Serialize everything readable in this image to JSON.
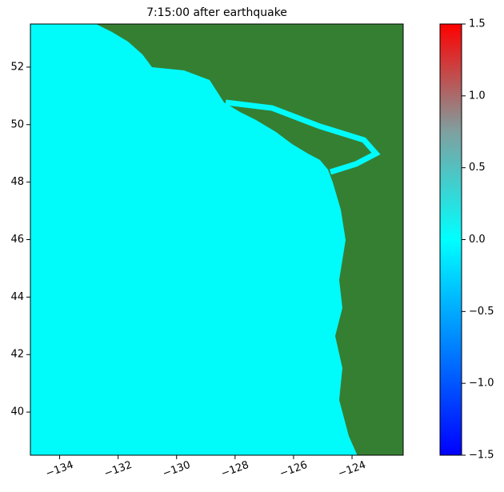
{
  "chart_data": {
    "type": "map",
    "title": "7:15:00 after earthquake",
    "xlim": [
      -135,
      -122.25
    ],
    "ylim": [
      38.5,
      53.5
    ],
    "xticks": [
      {
        "value": -134,
        "label": "−134"
      },
      {
        "value": -132,
        "label": "−132"
      },
      {
        "value": -130,
        "label": "−130"
      },
      {
        "value": -128,
        "label": "−128"
      },
      {
        "value": -126,
        "label": "−126"
      },
      {
        "value": -124,
        "label": "−124"
      }
    ],
    "yticks": [
      40,
      42,
      44,
      46,
      48,
      50,
      52
    ],
    "ocean_color": "#00fbfb",
    "land_color": "#357f33",
    "colorbar": {
      "lim": [
        -1.5,
        1.5
      ],
      "ticks": [
        {
          "value": -1.5,
          "label": "−1.5"
        },
        {
          "value": -1.0,
          "label": "−1.0"
        },
        {
          "value": -0.5,
          "label": "−0.5"
        },
        {
          "value": 0,
          "label": "0.0"
        },
        {
          "value": 0.5,
          "label": "0.5"
        },
        {
          "value": 1.0,
          "label": "1.0"
        },
        {
          "value": 1.5,
          "label": "1.5"
        }
      ],
      "colors": [
        "#0000ff",
        "#0080ff",
        "#00ffff",
        "#7fa0a0",
        "#ff0000"
      ]
    }
  }
}
